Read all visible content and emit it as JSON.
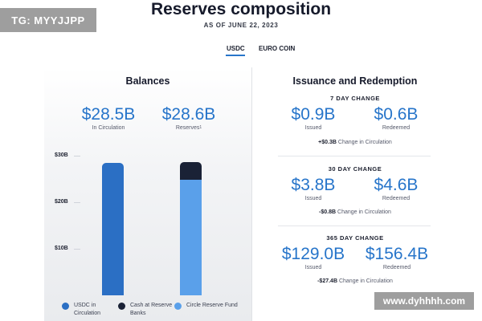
{
  "watermark_top": "TG: MYYJJPP",
  "watermark_bottom": "www.dyhhhh.com",
  "header": {
    "title": "Reserves composition",
    "as_of": "AS OF JUNE 22, 2023"
  },
  "tabs": [
    {
      "label": "USDC",
      "selected": true
    },
    {
      "label": "EURO COIN",
      "selected": false
    }
  ],
  "balances": {
    "title": "Balances",
    "in_circulation_value": "$28.5B",
    "in_circulation_label": "In Circulation",
    "reserves_value": "$28.6B",
    "reserves_label": "Reserves",
    "reserves_footnote": "1"
  },
  "chart_data": {
    "type": "bar",
    "y_ticks": [
      "$30B",
      "$20B",
      "$10B"
    ],
    "ylim": [
      0,
      30
    ],
    "grid": true,
    "categories": [
      "In Circulation",
      "Reserves"
    ],
    "series": [
      {
        "name": "USDC in Circulation",
        "color": "#2b6fc4",
        "values": [
          28.5,
          0
        ]
      },
      {
        "name": "Circle Reserve Fund",
        "color": "#5aa0ea",
        "values": [
          0,
          24.8
        ]
      },
      {
        "name": "Cash at Reserve Banks",
        "color": "#1a2236",
        "values": [
          0,
          3.8
        ]
      }
    ],
    "legend": [
      {
        "label": "USDC in Circulation",
        "color": "#2b6fc4"
      },
      {
        "label": "Cash at Reserve Banks",
        "color": "#1a2236"
      },
      {
        "label": "Circle Reserve Fund",
        "color": "#5aa0ea"
      }
    ]
  },
  "issuance": {
    "title": "Issuance and Redemption",
    "blocks": [
      {
        "heading": "7 DAY CHANGE",
        "issued": "$0.9B",
        "issued_label": "Issued",
        "redeemed": "$0.6B",
        "redeemed_label": "Redeemed",
        "change": "+$0.3B",
        "change_label": "Change in Circulation"
      },
      {
        "heading": "30 DAY CHANGE",
        "issued": "$3.8B",
        "issued_label": "Issued",
        "redeemed": "$4.6B",
        "redeemed_label": "Redeemed",
        "change": "-$0.8B",
        "change_label": "Change in Circulation"
      },
      {
        "heading": "365 DAY CHANGE",
        "issued": "$129.0B",
        "issued_label": "Issued",
        "redeemed": "$156.4B",
        "redeemed_label": "Redeemed",
        "change": "-$27.4B",
        "change_label": "Change in Circulation"
      }
    ]
  }
}
